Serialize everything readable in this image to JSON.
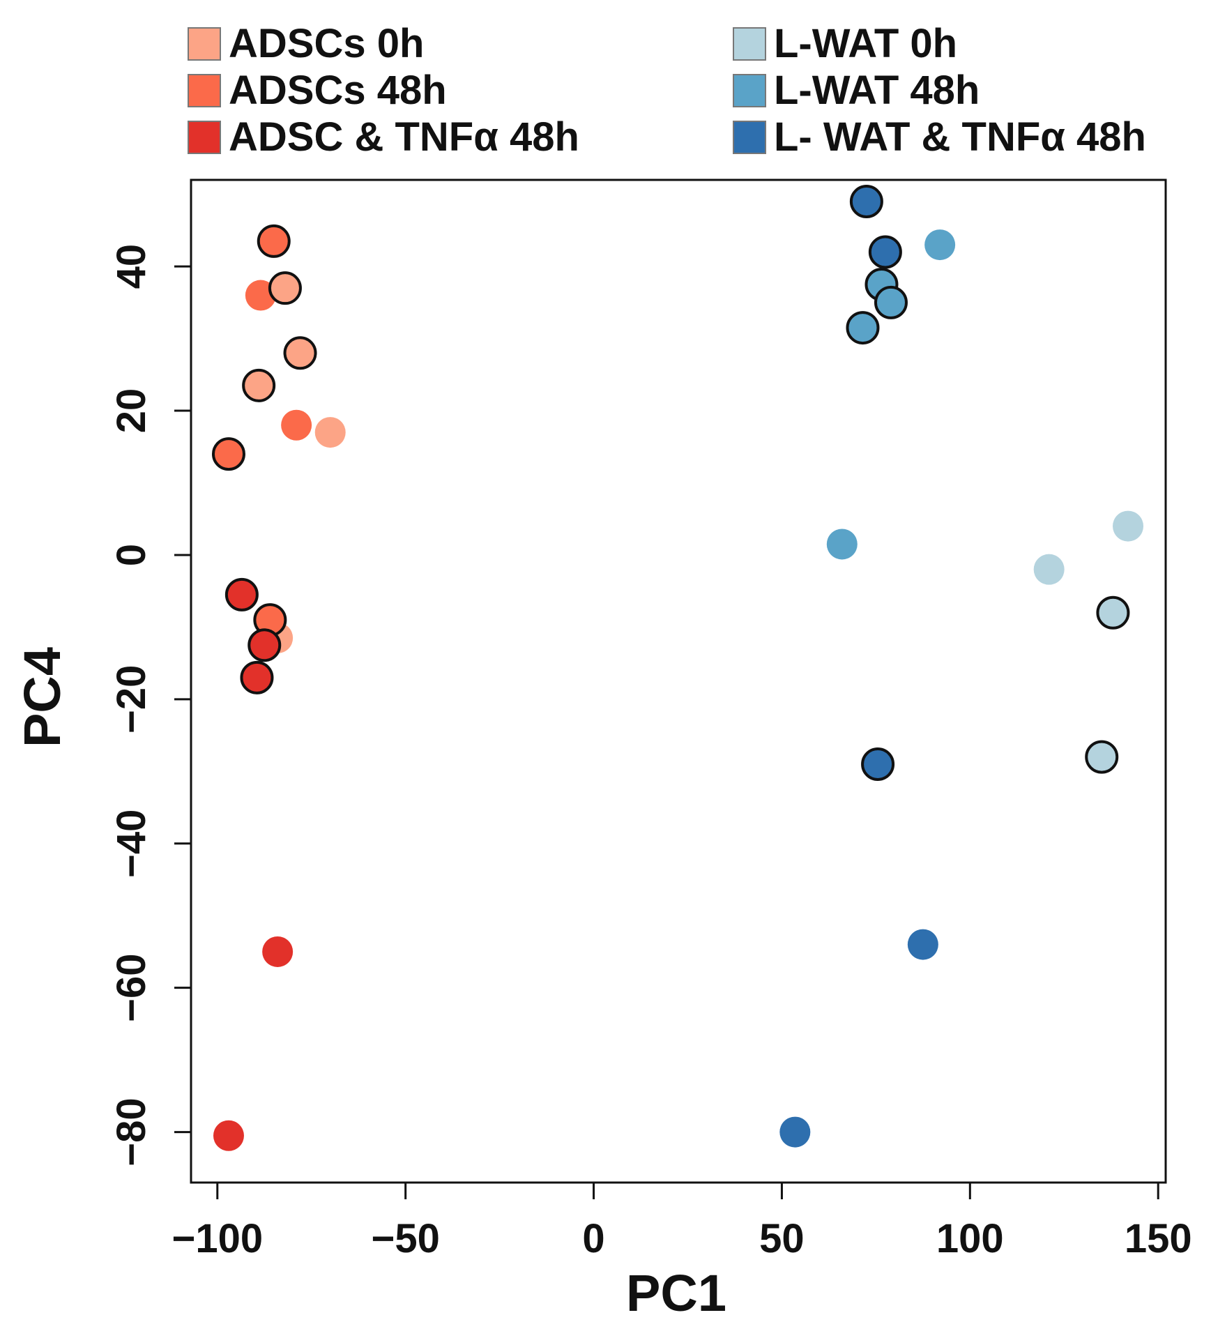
{
  "chart_data": {
    "type": "scatter",
    "title": "",
    "xlabel": "PC1",
    "ylabel": "PC4",
    "xlim": [
      -107,
      152
    ],
    "ylim": [
      -87,
      52
    ],
    "x_ticks": [
      -100,
      -50,
      0,
      50,
      100,
      150
    ],
    "y_ticks": [
      -80,
      -60,
      -40,
      -20,
      0,
      20,
      40
    ],
    "x_tick_labels": [
      "−100",
      "−50",
      "0",
      "50",
      "100",
      "150"
    ],
    "y_tick_labels": [
      "−80",
      "−60",
      "−40",
      "−20",
      "0",
      "20",
      "40"
    ],
    "grid": false,
    "legend_position": "top",
    "series": [
      {
        "name": "ADSCs 0h",
        "color": "#fca486",
        "points": [
          {
            "x": -82,
            "y": 37,
            "outlined": true
          },
          {
            "x": -78,
            "y": 28,
            "outlined": true
          },
          {
            "x": -89,
            "y": 23.5,
            "outlined": true
          },
          {
            "x": -70,
            "y": 17,
            "outlined": false
          },
          {
            "x": -84,
            "y": -11.5,
            "outlined": false
          }
        ]
      },
      {
        "name": "ADSCs 48h",
        "color": "#fb6a4a",
        "points": [
          {
            "x": -85,
            "y": 43.5,
            "outlined": true
          },
          {
            "x": -88.5,
            "y": 36,
            "outlined": false
          },
          {
            "x": -79,
            "y": 18,
            "outlined": false
          },
          {
            "x": -97,
            "y": 14,
            "outlined": true
          },
          {
            "x": -86,
            "y": -9,
            "outlined": true
          }
        ]
      },
      {
        "name": "ADSC & TNFα 48h",
        "color": "#e2312a",
        "points": [
          {
            "x": -93.5,
            "y": -5.5,
            "outlined": true
          },
          {
            "x": -87.5,
            "y": -12.5,
            "outlined": true
          },
          {
            "x": -89.5,
            "y": -17,
            "outlined": true
          },
          {
            "x": -84,
            "y": -55,
            "outlined": false
          },
          {
            "x": -97,
            "y": -80.5,
            "outlined": false
          }
        ]
      },
      {
        "name": "L-WAT 0h",
        "color": "#b4d3de",
        "points": [
          {
            "x": 142,
            "y": 4,
            "outlined": false
          },
          {
            "x": 121,
            "y": -2,
            "outlined": false
          },
          {
            "x": 138,
            "y": -8,
            "outlined": true
          },
          {
            "x": 135,
            "y": -28,
            "outlined": true
          }
        ]
      },
      {
        "name": "L-WAT 48h",
        "color": "#5aa3c8",
        "points": [
          {
            "x": 92,
            "y": 43,
            "outlined": false
          },
          {
            "x": 76.5,
            "y": 37.5,
            "outlined": true
          },
          {
            "x": 79,
            "y": 35,
            "outlined": true
          },
          {
            "x": 71.5,
            "y": 31.5,
            "outlined": true
          },
          {
            "x": 66,
            "y": 1.5,
            "outlined": false
          }
        ]
      },
      {
        "name": "L- WAT & TNFα 48h",
        "color": "#2e6fae",
        "points": [
          {
            "x": 72.5,
            "y": 49,
            "outlined": true
          },
          {
            "x": 77.5,
            "y": 42,
            "outlined": true
          },
          {
            "x": 75.5,
            "y": -29,
            "outlined": true
          },
          {
            "x": 87.5,
            "y": -54,
            "outlined": false
          },
          {
            "x": 53.5,
            "y": -80,
            "outlined": false
          }
        ]
      }
    ],
    "legend": {
      "entries": [
        "ADSCs 0h",
        "ADSCs 48h",
        "ADSC & TNFα 48h",
        "L-WAT 0h",
        "L-WAT 48h",
        "L- WAT & TNFα 48h"
      ]
    }
  }
}
